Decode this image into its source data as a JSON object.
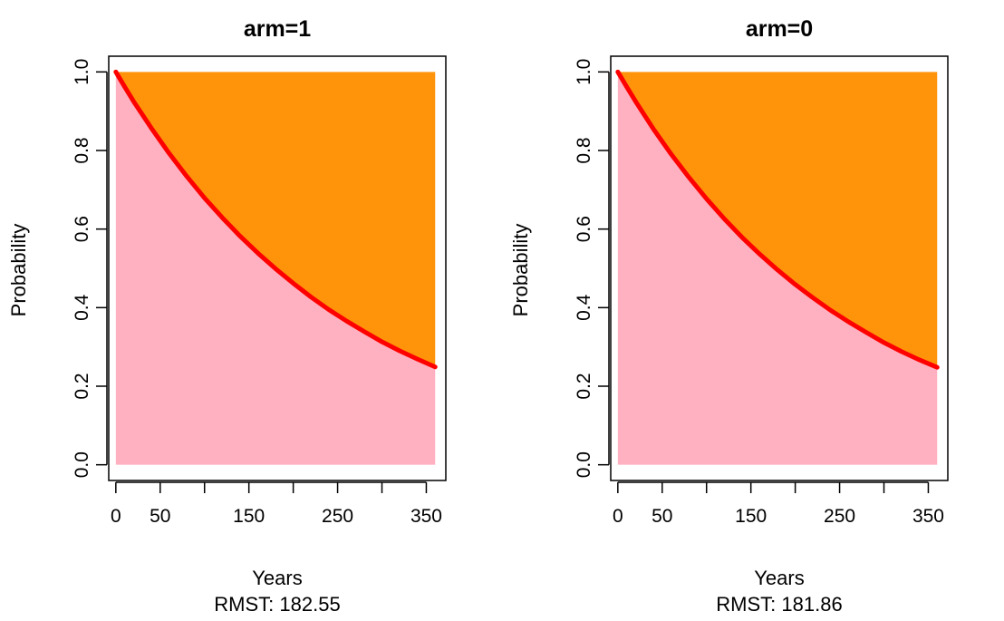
{
  "chart_data": [
    {
      "type": "area",
      "title": "arm=1",
      "xlabel": "Years",
      "xlabel_sub": "RMST: 182.55",
      "ylabel": "Probability",
      "xlim": [
        -8,
        372
      ],
      "ylim": [
        -0.04,
        1.04
      ],
      "x_ticks": [
        0,
        50,
        100,
        150,
        200,
        250,
        300,
        350
      ],
      "x_tick_labels": [
        "0",
        "50",
        "",
        "150",
        "",
        "250",
        "",
        "350"
      ],
      "y_ticks": [
        0.0,
        0.2,
        0.4,
        0.6,
        0.8,
        1.0
      ],
      "y_tick_labels": [
        "0.0",
        "0.2",
        "0.4",
        "0.6",
        "0.8",
        "1.0"
      ],
      "tau": 360,
      "curve_x": [
        0,
        10,
        20,
        40,
        60,
        80,
        100,
        120,
        140,
        160,
        180,
        200,
        220,
        240,
        260,
        280,
        300,
        320,
        340,
        360
      ],
      "curve_y": [
        1.0,
        0.962,
        0.925,
        0.857,
        0.793,
        0.734,
        0.679,
        0.629,
        0.582,
        0.539,
        0.499,
        0.462,
        0.427,
        0.395,
        0.366,
        0.339,
        0.313,
        0.29,
        0.269,
        0.249
      ],
      "colors": {
        "below_curve": "#ffb0c1",
        "above_curve": "#ff930a",
        "curve": "#ff0000"
      }
    },
    {
      "type": "area",
      "title": "arm=0",
      "xlabel": "Years",
      "xlabel_sub": "RMST: 181.86",
      "ylabel": "Probability",
      "xlim": [
        -8,
        372
      ],
      "ylim": [
        -0.04,
        1.04
      ],
      "x_ticks": [
        0,
        50,
        100,
        150,
        200,
        250,
        300,
        350
      ],
      "x_tick_labels": [
        "0",
        "50",
        "",
        "150",
        "",
        "250",
        "",
        "350"
      ],
      "y_ticks": [
        0.0,
        0.2,
        0.4,
        0.6,
        0.8,
        1.0
      ],
      "y_tick_labels": [
        "0.0",
        "0.2",
        "0.4",
        "0.6",
        "0.8",
        "1.0"
      ],
      "tau": 360,
      "curve_x": [
        0,
        10,
        20,
        40,
        60,
        80,
        100,
        120,
        140,
        160,
        180,
        200,
        220,
        240,
        260,
        280,
        300,
        320,
        340,
        360
      ],
      "curve_y": [
        1.0,
        0.962,
        0.925,
        0.855,
        0.791,
        0.732,
        0.677,
        0.626,
        0.579,
        0.536,
        0.496,
        0.459,
        0.425,
        0.393,
        0.364,
        0.337,
        0.311,
        0.288,
        0.267,
        0.248
      ],
      "colors": {
        "below_curve": "#ffb0c1",
        "above_curve": "#ff930a",
        "curve": "#ff0000"
      }
    }
  ]
}
